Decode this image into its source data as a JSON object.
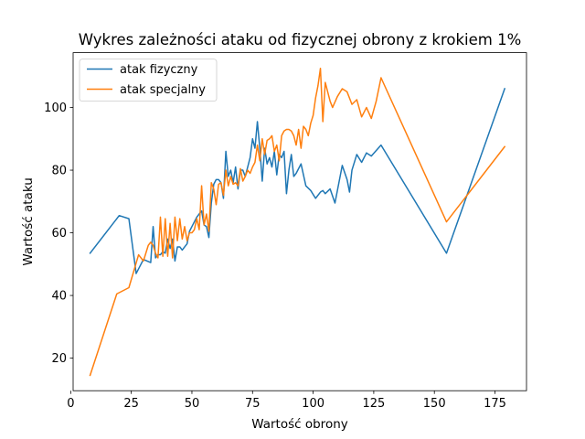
{
  "chart_data": {
    "type": "line",
    "title": "Wykres zależności ataku od fizycznej obrony z krokiem 1%",
    "xlabel": "Wartość obrony",
    "ylabel": "Wartość ataku",
    "xlim": [
      1,
      188
    ],
    "ylim": [
      9.6,
      117.5
    ],
    "xticks": [
      0,
      25,
      50,
      75,
      100,
      125,
      150,
      175
    ],
    "yticks": [
      20,
      40,
      60,
      80,
      100
    ],
    "legend_position": "upper-left",
    "grid": false,
    "series": [
      {
        "name": "atak fizyczny",
        "color": "#1f77b4",
        "x": [
          8,
          20,
          24,
          27,
          30,
          33,
          34,
          35,
          36,
          37,
          38,
          39,
          40,
          41,
          42,
          43,
          44,
          45,
          46,
          47,
          48,
          49,
          50,
          51,
          52,
          53,
          54,
          55,
          56,
          57,
          58,
          59,
          60,
          61,
          62,
          63,
          64,
          65,
          66,
          67,
          68,
          69,
          70,
          71,
          72,
          73,
          74,
          75,
          76,
          77,
          78,
          79,
          80,
          81,
          82,
          83,
          84,
          85,
          86,
          87,
          88,
          89,
          90,
          91,
          92,
          93,
          95,
          97,
          99,
          101,
          103,
          104,
          105,
          107,
          109,
          112,
          114,
          115,
          116,
          118,
          120,
          122,
          124,
          128,
          155,
          179
        ],
        "y": [
          53.5,
          65.5,
          64.5,
          47,
          51.5,
          50.5,
          62,
          52,
          53,
          53,
          54,
          53.5,
          58,
          55,
          58,
          51,
          55.5,
          55.5,
          54.5,
          55.5,
          56.5,
          60.5,
          62,
          63.5,
          65,
          66,
          67,
          62.5,
          62,
          58.5,
          69.5,
          75.5,
          77,
          77,
          76,
          71,
          86,
          78,
          80,
          76,
          81,
          74,
          80,
          80,
          78,
          81,
          84,
          90,
          87,
          95.5,
          87,
          76.5,
          87,
          82,
          84,
          81,
          86,
          78.5,
          85,
          84,
          86,
          72.5,
          80,
          85,
          78,
          79,
          82,
          75,
          73.5,
          71,
          73,
          73.5,
          72.5,
          74,
          69.5,
          81.5,
          77,
          73,
          80,
          85,
          82.5,
          85.5,
          84.5,
          88,
          53.5,
          106
        ]
      },
      {
        "name": "atak specjalny",
        "color": "#ff7f0e",
        "x": [
          8,
          19,
          24,
          28,
          30,
          32,
          33,
          34,
          35,
          36,
          37,
          38,
          39,
          40,
          41,
          42,
          43,
          44,
          45,
          46,
          47,
          48,
          49,
          50,
          51,
          52,
          53,
          54,
          55,
          56,
          57,
          58,
          59,
          60,
          61,
          62,
          63,
          64,
          65,
          66,
          67,
          68,
          69,
          70,
          71,
          72,
          73,
          74,
          75,
          76,
          77,
          78,
          79,
          80,
          81,
          82,
          83,
          84,
          85,
          86,
          87,
          88,
          89,
          90,
          91,
          92,
          93,
          94,
          95,
          96,
          97,
          98,
          99,
          100,
          101,
          102,
          103,
          104,
          105,
          107,
          108,
          110,
          112,
          114,
          116,
          118,
          120,
          122,
          124,
          126,
          128,
          155,
          179
        ],
        "y": [
          14.5,
          40.5,
          42.5,
          53,
          51,
          56,
          57,
          56,
          53.5,
          52,
          65,
          52.5,
          64.5,
          52.5,
          63,
          52,
          65,
          57.5,
          64.5,
          58,
          62,
          57.5,
          60,
          60,
          61,
          64.5,
          61,
          75,
          62.5,
          66,
          60.5,
          76,
          74,
          69,
          75.5,
          76,
          72,
          80,
          75,
          78,
          75.5,
          76,
          75,
          80.5,
          76.5,
          78,
          80,
          79,
          81,
          82.5,
          88,
          83,
          90,
          85,
          89.5,
          90,
          91,
          86,
          88,
          83,
          91,
          92.5,
          93,
          93,
          92.5,
          91,
          88,
          93,
          87,
          94,
          93,
          91,
          95,
          97.5,
          103,
          107,
          112.5,
          95.5,
          108,
          102,
          100,
          103.5,
          106,
          105,
          101,
          102.5,
          97,
          100,
          96.5,
          102,
          109.5,
          63.5,
          87.5
        ]
      }
    ]
  }
}
